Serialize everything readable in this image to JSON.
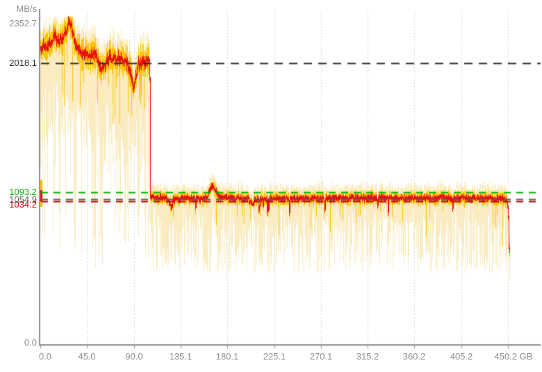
{
  "chart_data": {
    "type": "area",
    "description": "Disk benchmark transfer-rate graph: pale min-max band, orange inner band, red average line over drive position",
    "y_unit": "MB/s",
    "x_unit": "GB",
    "y_axis": {
      "top_label": "2352.7",
      "bottom_label": "0.0",
      "axis_max_value": 2352.7,
      "axis_min_value": 0
    },
    "x_ticks": [
      {
        "gb": 0,
        "label": "0.0"
      },
      {
        "gb": 45.02,
        "label": "45.0"
      },
      {
        "gb": 90.03,
        "label": "90.0"
      },
      {
        "gb": 135.1,
        "label": "135.1"
      },
      {
        "gb": 180.1,
        "label": "180.1"
      },
      {
        "gb": 225.1,
        "label": "225.1"
      },
      {
        "gb": 270.1,
        "label": "270.1"
      },
      {
        "gb": 315.2,
        "label": "315.2"
      },
      {
        "gb": 360.2,
        "label": "360.2"
      },
      {
        "gb": 405.2,
        "label": "405.2"
      },
      {
        "gb": 450.2,
        "label": "450.2 GB"
      }
    ],
    "reference_lines": [
      {
        "label": "2018.1",
        "value": 2018.1,
        "color": "#2e2e2e",
        "line": "black-dashed"
      },
      {
        "label": "1093.2",
        "value": 1093.2,
        "color": "#00b400",
        "line": "green-dashed"
      },
      {
        "label": "1054.9",
        "value": 1054.9,
        "color": "#5e5e5e",
        "line": "gray-dashed"
      },
      {
        "label": "1034.2",
        "value": 1034.2,
        "color": "#cc0000",
        "line": "red-dashed"
      }
    ],
    "colors": {
      "range_band": "#FAEBC0",
      "inner_band": "#FFC405",
      "avg_line": "#E41111",
      "gridline": "#c9c9c9",
      "axis": "#909090"
    },
    "series": {
      "name": "transfer rate",
      "avg_breakpoints_gb_mbs": [
        [
          0,
          2120
        ],
        [
          2,
          2150
        ],
        [
          5,
          2120
        ],
        [
          8,
          2170
        ],
        [
          11,
          2140
        ],
        [
          13,
          2240
        ],
        [
          15,
          2190
        ],
        [
          18,
          2170
        ],
        [
          21,
          2205
        ],
        [
          24,
          2235
        ],
        [
          27,
          2310
        ],
        [
          29,
          2290
        ],
        [
          31,
          2250
        ],
        [
          33,
          2160
        ],
        [
          36,
          2120
        ],
        [
          39,
          2105
        ],
        [
          43,
          2080
        ],
        [
          46,
          2055
        ],
        [
          49,
          2085
        ],
        [
          52,
          2075
        ],
        [
          55,
          2045
        ],
        [
          58,
          2000
        ],
        [
          61,
          1965
        ],
        [
          63,
          2030
        ],
        [
          66,
          2065
        ],
        [
          69,
          2045
        ],
        [
          72,
          2060
        ],
        [
          75,
          2045
        ],
        [
          78,
          2055
        ],
        [
          81,
          2040
        ],
        [
          84,
          2000
        ],
        [
          87,
          1925
        ],
        [
          90,
          1845
        ],
        [
          92,
          1930
        ],
        [
          94,
          2010
        ],
        [
          97,
          2030
        ],
        [
          100,
          2020
        ],
        [
          103,
          2035
        ],
        [
          105,
          2025
        ],
        [
          105.2,
          1060
        ],
        [
          110,
          1052
        ],
        [
          120,
          1050
        ],
        [
          124,
          1020
        ],
        [
          126,
          985
        ],
        [
          128,
          1045
        ],
        [
          140,
          1050
        ],
        [
          160,
          1052
        ],
        [
          163,
          1118
        ],
        [
          166,
          1135
        ],
        [
          169,
          1098
        ],
        [
          172,
          1060
        ],
        [
          180,
          1050
        ],
        [
          200,
          1048
        ],
        [
          204,
          1005
        ],
        [
          206,
          1045
        ],
        [
          240,
          1050
        ],
        [
          270,
          1048
        ],
        [
          300,
          1052
        ],
        [
          330,
          1050
        ],
        [
          360,
          1050
        ],
        [
          390,
          1052
        ],
        [
          420,
          1050
        ],
        [
          445,
          1048
        ],
        [
          449,
          1040
        ],
        [
          450.1,
          955
        ],
        [
          450.7,
          700
        ],
        [
          451.2,
          690
        ]
      ],
      "segments": [
        {
          "from_gb": 0,
          "to_gb": 105,
          "avg_mbs_range": [
            1845,
            2310
          ],
          "note": "high-speed region, avg near the 2018.1 dashed line"
        },
        {
          "from_gb": 105,
          "to_gb": 450.2,
          "avg_mbs_range": [
            985,
            1135
          ],
          "note": "low-speed region, avg near 1050; bump at ~165 GB; final drop to ~700"
        }
      ],
      "envelope": {
        "high_region": {
          "red_jitter": 60,
          "gold_half": [
            45,
            120
          ],
          "cream_above": [
            30,
            110
          ],
          "min_deep_spike_chance": 0.12,
          "min_deep_spike": [
            520,
            780
          ],
          "min_mid_chance": 0.28,
          "min_mid_drop": [
            750,
            1450
          ],
          "min_base_drop": [
            280,
            750
          ]
        },
        "low_region": {
          "red_jitter": 26,
          "dip_chance": 0.018,
          "dip_depth": [
            40,
            110
          ],
          "gold_half": [
            20,
            54
          ],
          "cream_above": [
            20,
            75
          ],
          "min_deep_spike_chance": 0.5,
          "min_deep_spike": [
            515,
            715
          ],
          "min_mid_chance": 0.32,
          "min_mid_abs": [
            715,
            1005
          ],
          "min_base_drop": [
            135,
            245
          ]
        },
        "start_blob": {
          "columns": 3,
          "gold_mbs": [
            990,
            1185
          ],
          "red_mbs": [
            1030,
            1110
          ]
        }
      }
    }
  }
}
